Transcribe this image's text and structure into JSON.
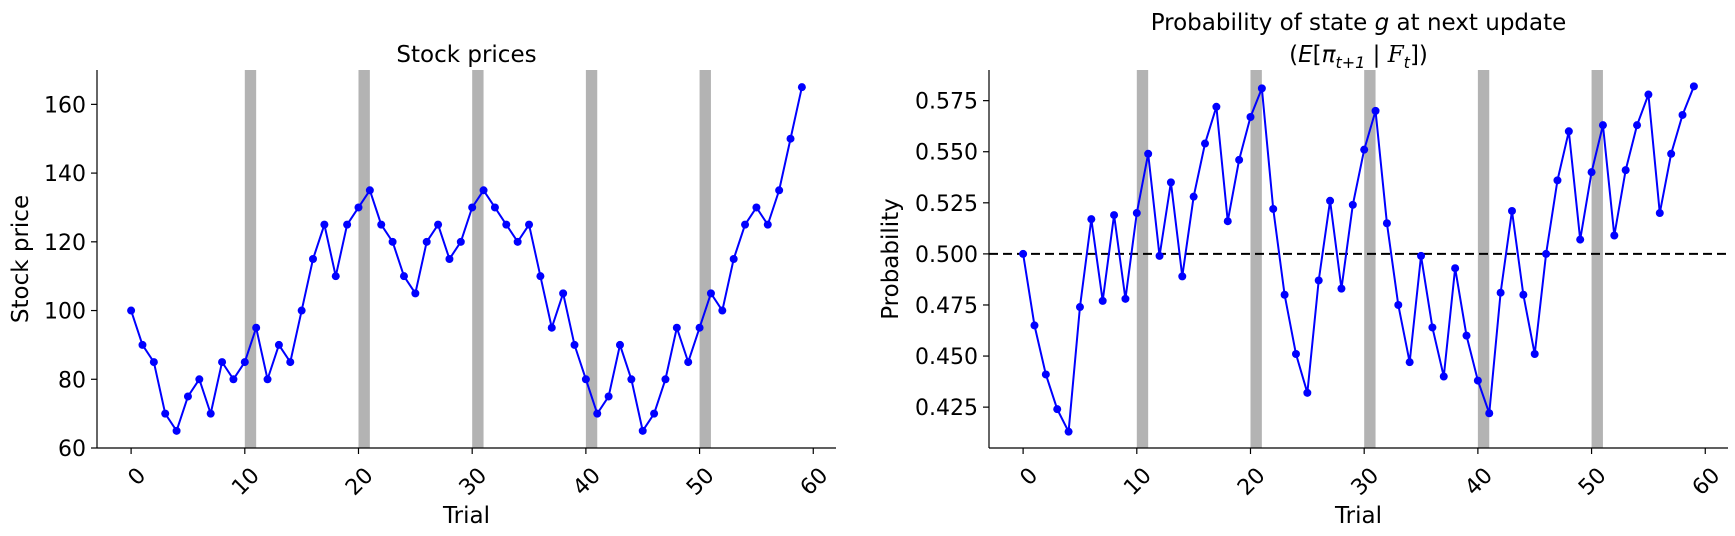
{
  "chart_data": [
    {
      "type": "line",
      "title": "Stock prices",
      "xlabel": "Trial",
      "ylabel": "Stock price",
      "xlim": [
        -3,
        62
      ],
      "ylim": [
        60,
        170
      ],
      "xticks": [
        0,
        10,
        20,
        30,
        40,
        50,
        60
      ],
      "yticks": [
        60,
        80,
        100,
        120,
        140,
        160
      ],
      "xtick_rotation": 45,
      "grid": false,
      "shaded_spans": [
        [
          10,
          11
        ],
        [
          20,
          21
        ],
        [
          30,
          31
        ],
        [
          40,
          41
        ],
        [
          50,
          51
        ]
      ],
      "color": "#0000ff",
      "series": [
        {
          "x": [
            0,
            1,
            2,
            3,
            4,
            5,
            6,
            7,
            8,
            9,
            10,
            11,
            12,
            13,
            14,
            15,
            16,
            17,
            18,
            19,
            20,
            21,
            22,
            23,
            24,
            25,
            26,
            27,
            28,
            29,
            30,
            31,
            32,
            33,
            34,
            35,
            36,
            37,
            38,
            39,
            40,
            41,
            42,
            43,
            44,
            45,
            46,
            47,
            48,
            49,
            50,
            51,
            52,
            53,
            54,
            55,
            56,
            57,
            58,
            59
          ],
          "values": [
            100,
            90,
            85,
            70,
            65,
            75,
            80,
            70,
            85,
            80,
            85,
            95,
            80,
            90,
            85,
            100,
            115,
            125,
            110,
            125,
            130,
            135,
            125,
            120,
            110,
            105,
            120,
            125,
            115,
            120,
            130,
            135,
            130,
            125,
            120,
            125,
            110,
            95,
            105,
            90,
            80,
            70,
            75,
            90,
            80,
            65,
            70,
            80,
            95,
            85,
            95,
            105,
            100,
            115,
            125,
            130,
            125,
            135,
            150,
            165
          ]
        }
      ]
    },
    {
      "type": "line",
      "title": "Probability of state g at next update",
      "subtitle": "(E[π_{t+1} | F_t])",
      "title_line1_parts": [
        "Probability of state ",
        "g",
        " at next update"
      ],
      "subtitle_parts": [
        "(",
        "E",
        "[",
        "π",
        "t+1",
        " | ",
        "F",
        "t",
        "])"
      ],
      "xlabel": "Trial",
      "ylabel": "Probability",
      "xlim": [
        -3,
        62
      ],
      "ylim": [
        0.405,
        0.59
      ],
      "xticks": [
        0,
        10,
        20,
        30,
        40,
        50,
        60
      ],
      "yticks": [
        0.425,
        0.45,
        0.475,
        0.5,
        0.525,
        0.55,
        0.575
      ],
      "ytick_labels": [
        "0.425",
        "0.450",
        "0.475",
        "0.500",
        "0.525",
        "0.550",
        "0.575"
      ],
      "xtick_rotation": 45,
      "grid": false,
      "reference_line": {
        "y": 0.5,
        "style": "dashed",
        "color": "#000000"
      },
      "shaded_spans": [
        [
          10,
          11
        ],
        [
          20,
          21
        ],
        [
          30,
          31
        ],
        [
          40,
          41
        ],
        [
          50,
          51
        ]
      ],
      "color": "#0000ff",
      "series": [
        {
          "x": [
            0,
            1,
            2,
            3,
            4,
            5,
            6,
            7,
            8,
            9,
            10,
            11,
            12,
            13,
            14,
            15,
            16,
            17,
            18,
            19,
            20,
            21,
            22,
            23,
            24,
            25,
            26,
            27,
            28,
            29,
            30,
            31,
            32,
            33,
            34,
            35,
            36,
            37,
            38,
            39,
            40,
            41,
            42,
            43,
            44,
            45,
            46,
            47,
            48,
            49,
            50,
            51,
            52,
            53,
            54,
            55,
            56,
            57,
            58,
            59
          ],
          "values": [
            0.5,
            0.465,
            0.441,
            0.424,
            0.413,
            0.474,
            0.517,
            0.477,
            0.519,
            0.478,
            0.52,
            0.549,
            0.499,
            0.535,
            0.489,
            0.528,
            0.554,
            0.572,
            0.516,
            0.546,
            0.567,
            0.581,
            0.522,
            0.48,
            0.451,
            0.432,
            0.487,
            0.526,
            0.483,
            0.524,
            0.551,
            0.57,
            0.515,
            0.475,
            0.447,
            0.499,
            0.464,
            0.44,
            0.493,
            0.46,
            0.438,
            0.422,
            0.481,
            0.521,
            0.48,
            0.451,
            0.5,
            0.536,
            0.56,
            0.507,
            0.54,
            0.563,
            0.509,
            0.541,
            0.563,
            0.578,
            0.52,
            0.549,
            0.568,
            0.582
          ]
        }
      ]
    }
  ]
}
